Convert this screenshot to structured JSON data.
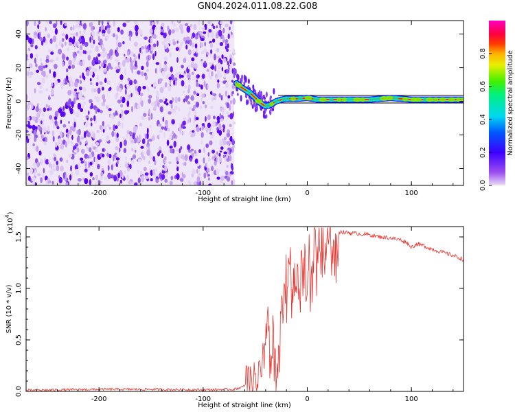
{
  "title": "GN04.2024.011.08.22.G08",
  "chart_data": [
    {
      "type": "heatmap",
      "xlabel": "Height of straight line (km)",
      "ylabel": "Frequency (Hz)",
      "xlim": [
        -270,
        150
      ],
      "ylim": [
        -50,
        48
      ],
      "x_ticks": [
        -200,
        -100,
        0,
        100
      ],
      "y_ticks": [
        -40,
        -20,
        0,
        20,
        40
      ],
      "colorbar": {
        "label": "Normalized spectral amplitude",
        "range": [
          0.0,
          1.0
        ],
        "ticks": [
          "0.0",
          "0.2",
          "0.4",
          "0.6",
          "0.8"
        ],
        "colormap": "rainbow (violet → blue → cyan → green → yellow → red → magenta)"
      },
      "noise_region": {
        "x_range": [
          -270,
          -70
        ],
        "frequency_range": [
          -50,
          48
        ],
        "amplitude": "low (0.0–0.2)"
      },
      "signal_ridge": {
        "x": [
          -70,
          -65,
          -60,
          -55,
          -50,
          -45,
          -40,
          -35,
          -30,
          -25,
          -20,
          -10,
          0,
          10,
          20,
          40,
          60,
          80,
          100,
          120,
          150
        ],
        "frequency": [
          12,
          9,
          7,
          5,
          2,
          -1,
          -3,
          -2,
          0,
          1,
          1.5,
          1.5,
          2,
          1,
          1,
          1,
          1,
          2,
          1,
          1,
          1
        ]
      },
      "band_edges_frequency": [
        -1,
        3.5
      ],
      "grid": false
    },
    {
      "type": "line",
      "xlabel": "Height of straight line (km)",
      "ylabel": "SNR (10 * v/v)",
      "y_scale_note": "(x10",
      "y_scale_exponent": "4",
      "xlim": [
        -270,
        150
      ],
      "ylim": [
        0,
        1.6
      ],
      "x_ticks": [
        -200,
        -100,
        0,
        100
      ],
      "y_ticks": [
        "0.0",
        "0.5",
        "1.0",
        "1.5"
      ],
      "series": [
        {
          "color": "#e8302a",
          "x": [
            -270,
            -200,
            -150,
            -100,
            -70,
            -60,
            -50,
            -45,
            -40,
            -37,
            -35,
            -32,
            -30,
            -25,
            -20,
            -15,
            -10,
            -5,
            0,
            5,
            10,
            20,
            30,
            40,
            50,
            60,
            70,
            80,
            90,
            95,
            100,
            105,
            110,
            120,
            130,
            140,
            150
          ],
          "y": [
            0.01,
            0.02,
            0.02,
            0.015,
            0.02,
            0.05,
            0.1,
            0.15,
            0.3,
            0.9,
            0.25,
            0.6,
            0.12,
            0.8,
            1.1,
            1.2,
            1.0,
            1.3,
            1.35,
            1.2,
            1.45,
            1.5,
            1.55,
            1.54,
            1.53,
            1.52,
            1.5,
            1.49,
            1.47,
            1.45,
            1.4,
            1.43,
            1.42,
            1.38,
            1.35,
            1.32,
            1.28
          ]
        }
      ],
      "grid": false
    }
  ]
}
